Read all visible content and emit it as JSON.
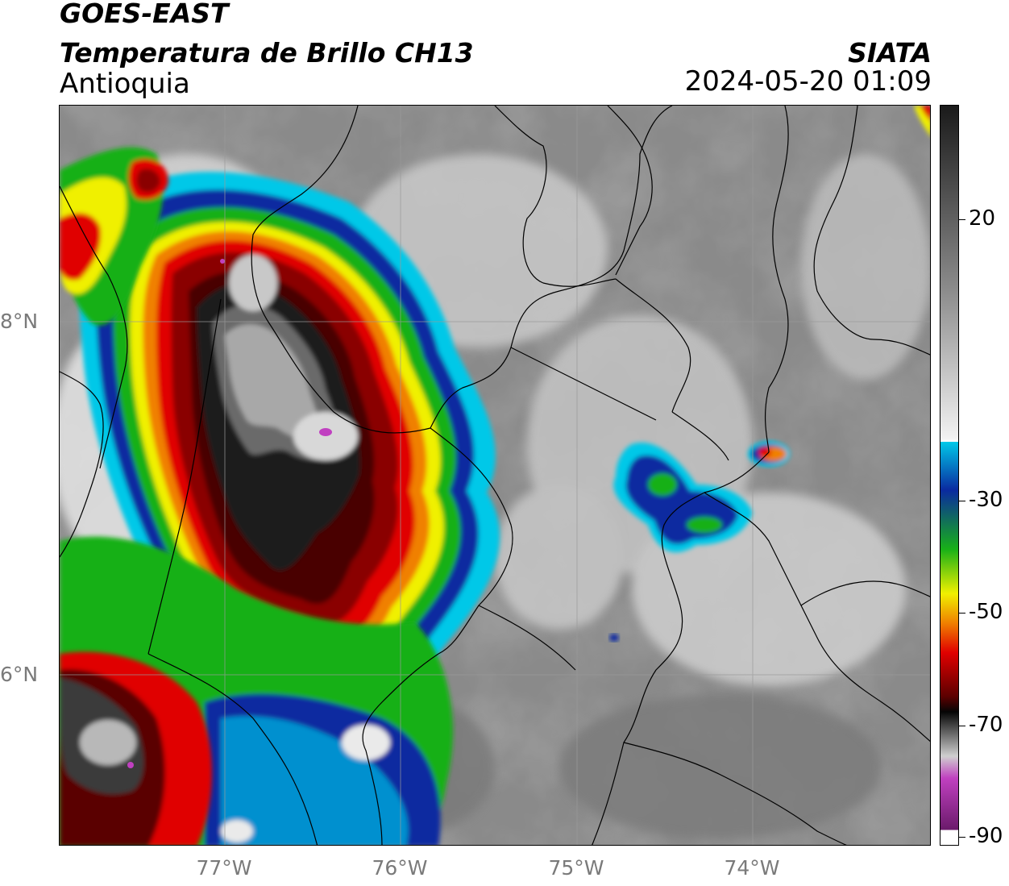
{
  "header": {
    "satellite": "GOES-EAST",
    "product": "Temperatura de Brillo CH13",
    "region": "Antioquia",
    "agency": "SIATA",
    "datetime": "2024-05-20 01:09"
  },
  "axes": {
    "lat_labels": [
      "8°N",
      "6°N"
    ],
    "lon_labels": [
      "77°W",
      "76°W",
      "75°W",
      "74°W"
    ]
  },
  "colorbar": {
    "unit_hint": "°C",
    "tick_labels": [
      "20",
      "-30",
      "-50",
      "-70",
      "-90"
    ],
    "colors": {
      "warm": "#1a1a1a",
      "mid_gray": "#8c8c8c",
      "light": "#f2f2f2",
      "cyan": "#00c8e8",
      "blue": "#0a2aa0",
      "green": "#18b018",
      "yellow": "#f0f000",
      "orange": "#f08000",
      "red": "#e00000",
      "dark_red": "#5a0000",
      "black": "#050505",
      "magenta": "#c040c0"
    }
  }
}
